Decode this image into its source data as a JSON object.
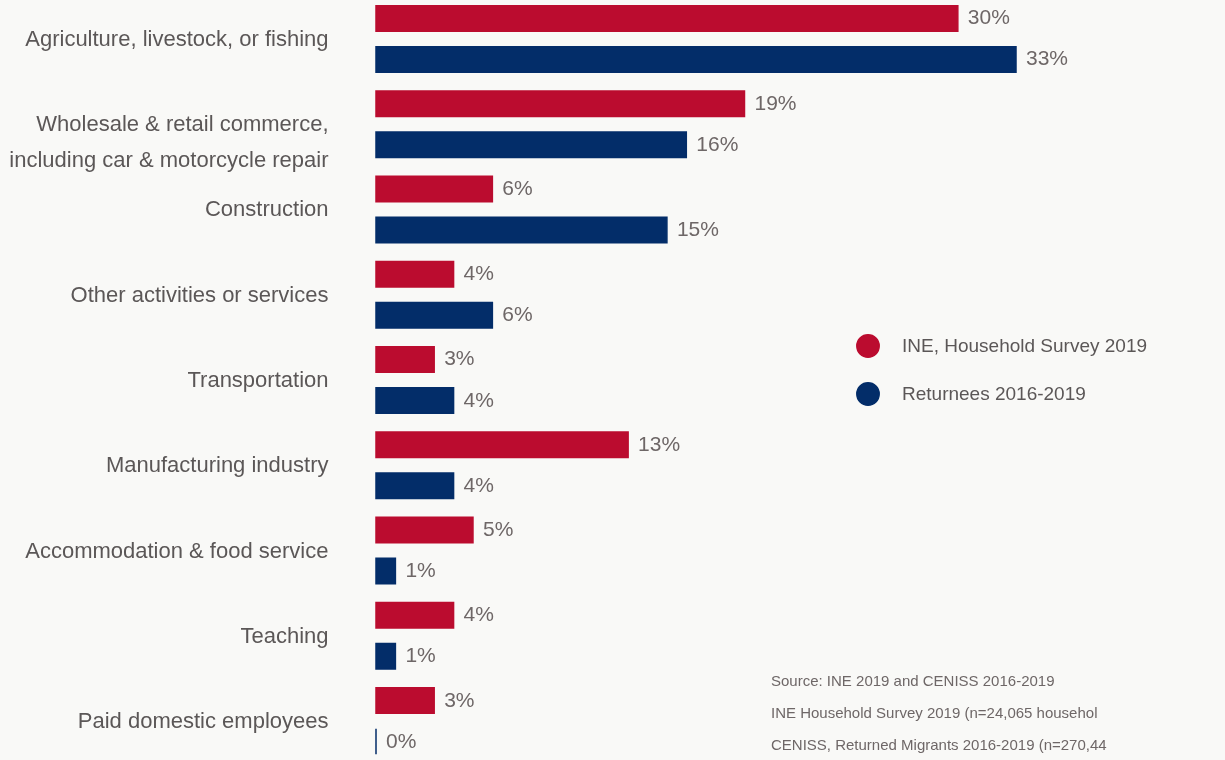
{
  "chart_data": {
    "type": "bar",
    "orientation": "horizontal",
    "categories": [
      "Agriculture, livestock, or fishing",
      "Wholesale & retail commerce,\nincluding car & motorcycle repair",
      "Construction",
      "Other activities or services",
      "Transportation",
      "Manufacturing industry",
      "Accommodation & food service",
      "Teaching",
      "Paid domestic employees"
    ],
    "series": [
      {
        "name": "INE, Household Survey 2019",
        "color": "#bb0c2f",
        "values": [
          30,
          19,
          6,
          4,
          3,
          13,
          5,
          4,
          3
        ],
        "value_labels": [
          "30%",
          "19%",
          "6%",
          "4%",
          "3%",
          "13%",
          "5%",
          "4%",
          "3%"
        ]
      },
      {
        "name": "Returnees 2016-2019",
        "color": "#032d69",
        "values": [
          33,
          16,
          15,
          6,
          4,
          4,
          1,
          1,
          0
        ],
        "value_labels": [
          "33%",
          "16%",
          "15%",
          "6%",
          "4%",
          "4%",
          "1%",
          "1%",
          "0%"
        ]
      }
    ],
    "legend": "right",
    "annotations": [
      "Source: INE 2019 and CENISS 2016-2019",
      "INE Household Survey 2019 (n=24,065 househol",
      "CENISS, Returned Migrants 2016-2019 (n=270,44"
    ]
  }
}
